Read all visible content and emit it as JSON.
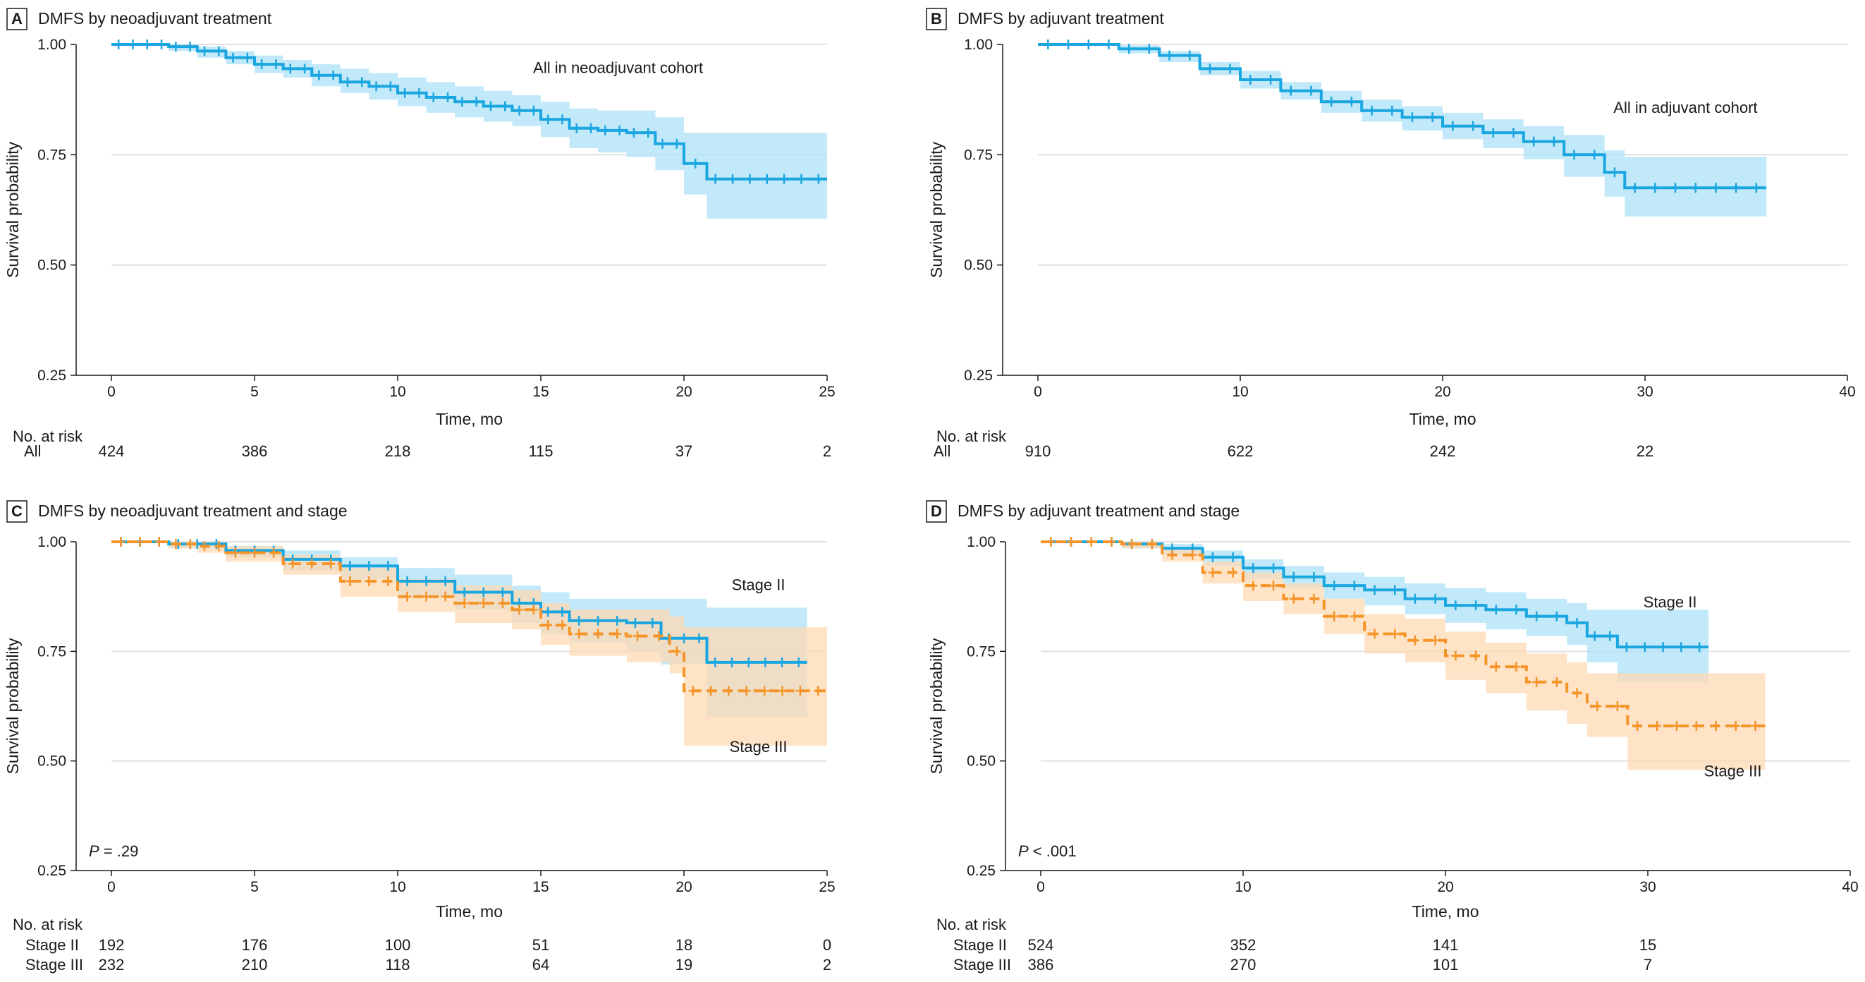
{
  "colors": {
    "blue": "#1aa6e0",
    "blue_band": "#b3e3f7",
    "orange": "#f59428",
    "orange_band": "#fdd9b3"
  },
  "chart_data": [
    {
      "type": "line",
      "panel": "A",
      "title": "DMFS by neoadjuvant treatment",
      "xlabel": "Time, mo",
      "ylabel": "Survival probability",
      "xlim": [
        0,
        25
      ],
      "ylim": [
        0.25,
        1.0
      ],
      "xticks": [
        0,
        5,
        10,
        15,
        20,
        25
      ],
      "xtick_labels": [
        "0",
        "5",
        "10",
        "15",
        "20",
        "25"
      ],
      "yticks": [
        0.25,
        0.5,
        0.75,
        1.0
      ],
      "ytick_labels": [
        "0.25",
        "0.50",
        "0.75",
        "1.00"
      ],
      "p_value": null,
      "series": [
        {
          "name": "All",
          "label": "All in neoadjuvant cohort",
          "style": "solid",
          "color": "blue",
          "x": [
            0,
            1,
            2,
            3,
            4,
            5,
            6,
            7,
            8,
            9,
            10,
            11,
            12,
            13,
            14,
            15,
            16,
            17,
            18,
            19,
            20,
            20.8,
            25
          ],
          "y": [
            1.0,
            1.0,
            0.995,
            0.985,
            0.97,
            0.955,
            0.945,
            0.93,
            0.915,
            0.905,
            0.89,
            0.88,
            0.87,
            0.86,
            0.85,
            0.83,
            0.81,
            0.805,
            0.8,
            0.775,
            0.73,
            0.695,
            0.695
          ],
          "ci_upper": [
            1.0,
            1.0,
            1.0,
            0.995,
            0.985,
            0.975,
            0.965,
            0.955,
            0.945,
            0.935,
            0.925,
            0.915,
            0.905,
            0.895,
            0.885,
            0.87,
            0.855,
            0.85,
            0.85,
            0.835,
            0.8,
            0.8,
            0.8
          ],
          "ci_lower": [
            1.0,
            1.0,
            0.985,
            0.97,
            0.955,
            0.935,
            0.925,
            0.905,
            0.89,
            0.875,
            0.86,
            0.845,
            0.835,
            0.825,
            0.815,
            0.79,
            0.765,
            0.755,
            0.745,
            0.715,
            0.66,
            0.605,
            0.605
          ]
        }
      ],
      "labels": [
        {
          "text": "All in neoadjuvant cohort",
          "x": 17.7,
          "y": 0.935
        }
      ],
      "risk_table": {
        "title": "No. at risk",
        "rows": [
          {
            "label": "All",
            "values": [
              "424",
              "386",
              "218",
              "115",
              "37",
              "2"
            ]
          }
        ]
      }
    },
    {
      "type": "line",
      "panel": "B",
      "title": "DMFS by adjuvant treatment",
      "xlabel": "Time, mo",
      "ylabel": "Survival probability",
      "xlim": [
        0,
        40
      ],
      "ylim": [
        0.25,
        1.0
      ],
      "xticks": [
        0,
        10,
        20,
        30,
        40
      ],
      "xtick_labels": [
        "0",
        "10",
        "20",
        "30",
        "40"
      ],
      "yticks": [
        0.25,
        0.5,
        0.75,
        1.0
      ],
      "ytick_labels": [
        "0.25",
        "0.50",
        "0.75",
        "1.00"
      ],
      "p_value": null,
      "series": [
        {
          "name": "All",
          "label": "All in adjuvant cohort",
          "style": "solid",
          "color": "blue",
          "x": [
            0,
            2,
            4,
            6,
            8,
            10,
            12,
            14,
            16,
            18,
            20,
            22,
            24,
            26,
            28,
            29,
            32,
            36
          ],
          "y": [
            1.0,
            1.0,
            0.99,
            0.975,
            0.945,
            0.92,
            0.895,
            0.87,
            0.85,
            0.835,
            0.815,
            0.8,
            0.78,
            0.75,
            0.71,
            0.675,
            0.675,
            0.675
          ],
          "ci_upper": [
            1.0,
            1.0,
            0.998,
            0.985,
            0.96,
            0.94,
            0.915,
            0.895,
            0.875,
            0.86,
            0.845,
            0.83,
            0.815,
            0.795,
            0.76,
            0.745,
            0.745,
            0.745
          ],
          "ci_lower": [
            1.0,
            1.0,
            0.98,
            0.96,
            0.93,
            0.9,
            0.875,
            0.845,
            0.825,
            0.805,
            0.785,
            0.765,
            0.74,
            0.7,
            0.655,
            0.61,
            0.61,
            0.61
          ]
        }
      ],
      "labels": [
        {
          "text": "All in adjuvant cohort",
          "x": 32.0,
          "y": 0.845
        }
      ],
      "risk_table": {
        "title": "No. at risk",
        "rows": [
          {
            "label": "All",
            "values": [
              "910",
              "622",
              "242",
              "22"
            ]
          }
        ]
      }
    },
    {
      "type": "line",
      "panel": "C",
      "title": "DMFS by neoadjuvant treatment and stage",
      "xlabel": "Time, mo",
      "ylabel": "Survival probability",
      "xlim": [
        0,
        25
      ],
      "ylim": [
        0.25,
        1.0
      ],
      "xticks": [
        0,
        5,
        10,
        15,
        20,
        25
      ],
      "xtick_labels": [
        "0",
        "5",
        "10",
        "15",
        "20",
        "25"
      ],
      "yticks": [
        0.25,
        0.5,
        0.75,
        1.0
      ],
      "ytick_labels": [
        "0.25",
        "0.50",
        "0.75",
        "1.00"
      ],
      "p_value": {
        "prefix": "P",
        "text": " = .29"
      },
      "series": [
        {
          "name": "Stage II",
          "label": "Stage II",
          "style": "solid",
          "color": "blue",
          "x": [
            0,
            2,
            4,
            6,
            8,
            10,
            12,
            14,
            15,
            16,
            18,
            19.2,
            20.8,
            24.3
          ],
          "y": [
            1.0,
            0.995,
            0.98,
            0.96,
            0.945,
            0.91,
            0.885,
            0.86,
            0.84,
            0.82,
            0.815,
            0.78,
            0.725,
            0.725
          ],
          "ci_upper": [
            1.0,
            1.0,
            0.99,
            0.98,
            0.965,
            0.94,
            0.925,
            0.9,
            0.885,
            0.87,
            0.87,
            0.87,
            0.85,
            0.85
          ],
          "ci_lower": [
            1.0,
            0.985,
            0.965,
            0.935,
            0.915,
            0.875,
            0.845,
            0.815,
            0.79,
            0.77,
            0.75,
            0.72,
            0.6,
            0.6
          ]
        },
        {
          "name": "Stage III",
          "label": "Stage III",
          "style": "dashed",
          "color": "orange",
          "x": [
            0,
            2,
            3,
            4,
            6,
            8,
            10,
            12,
            14,
            15,
            16,
            18,
            19.5,
            20,
            25
          ],
          "y": [
            1.0,
            0.995,
            0.99,
            0.975,
            0.95,
            0.91,
            0.875,
            0.86,
            0.845,
            0.81,
            0.79,
            0.785,
            0.75,
            0.66,
            0.66
          ],
          "ci_upper": [
            1.0,
            1.0,
            1.0,
            0.99,
            0.97,
            0.94,
            0.915,
            0.9,
            0.89,
            0.86,
            0.845,
            0.845,
            0.83,
            0.805,
            0.805
          ],
          "ci_lower": [
            1.0,
            0.985,
            0.975,
            0.955,
            0.925,
            0.875,
            0.84,
            0.815,
            0.8,
            0.765,
            0.74,
            0.725,
            0.7,
            0.535,
            0.535
          ]
        }
      ],
      "labels": [
        {
          "text": "Stage II",
          "x": 22.6,
          "y": 0.89
        },
        {
          "text": "Stage III",
          "x": 22.6,
          "y": 0.52
        }
      ],
      "risk_table": {
        "title": "No. at risk",
        "rows": [
          {
            "label": "Stage II",
            "values": [
              "192",
              "176",
              "100",
              "51",
              "18",
              "0"
            ]
          },
          {
            "label": "Stage III",
            "values": [
              "232",
              "210",
              "118",
              "64",
              "19",
              "2"
            ]
          }
        ]
      }
    },
    {
      "type": "line",
      "panel": "D",
      "title": "DMFS by adjuvant treatment and stage",
      "xlabel": "Time, mo",
      "ylabel": "Survival probability",
      "xlim": [
        0,
        40
      ],
      "ylim": [
        0.25,
        1.0
      ],
      "xticks": [
        0,
        10,
        20,
        30,
        40
      ],
      "xtick_labels": [
        "0",
        "10",
        "20",
        "30",
        "40"
      ],
      "yticks": [
        0.25,
        0.5,
        0.75,
        1.0
      ],
      "ytick_labels": [
        "0.25",
        "0.50",
        "0.75",
        "1.00"
      ],
      "p_value": {
        "prefix": "P",
        "text": " < .001"
      },
      "series": [
        {
          "name": "Stage II",
          "label": "Stage II",
          "style": "solid",
          "color": "blue",
          "x": [
            0,
            4,
            6,
            8,
            10,
            12,
            14,
            16,
            18,
            20,
            22,
            24,
            26,
            27,
            28.5,
            33
          ],
          "y": [
            1.0,
            0.995,
            0.985,
            0.965,
            0.94,
            0.92,
            0.9,
            0.89,
            0.87,
            0.855,
            0.845,
            0.83,
            0.815,
            0.785,
            0.76,
            0.76
          ],
          "ci_upper": [
            1.0,
            1.0,
            0.995,
            0.98,
            0.96,
            0.945,
            0.93,
            0.92,
            0.905,
            0.895,
            0.885,
            0.87,
            0.86,
            0.845,
            0.845,
            0.845
          ],
          "ci_lower": [
            1.0,
            0.985,
            0.97,
            0.945,
            0.915,
            0.895,
            0.87,
            0.855,
            0.835,
            0.815,
            0.8,
            0.785,
            0.765,
            0.725,
            0.68,
            0.68
          ]
        },
        {
          "name": "Stage III",
          "label": "Stage III",
          "style": "dashed",
          "color": "orange",
          "x": [
            0,
            4,
            6,
            8,
            10,
            12,
            14,
            16,
            18,
            20,
            22,
            24,
            26,
            27,
            29,
            35.8
          ],
          "y": [
            1.0,
            0.995,
            0.97,
            0.93,
            0.9,
            0.87,
            0.83,
            0.79,
            0.775,
            0.74,
            0.715,
            0.68,
            0.655,
            0.625,
            0.58,
            0.58
          ],
          "ci_upper": [
            1.0,
            1.0,
            0.985,
            0.955,
            0.93,
            0.905,
            0.87,
            0.835,
            0.825,
            0.795,
            0.77,
            0.745,
            0.725,
            0.7,
            0.7,
            0.7
          ],
          "ci_lower": [
            1.0,
            0.985,
            0.955,
            0.905,
            0.865,
            0.835,
            0.79,
            0.745,
            0.725,
            0.685,
            0.655,
            0.615,
            0.585,
            0.555,
            0.48,
            0.48
          ]
        }
      ],
      "labels": [
        {
          "text": "Stage II",
          "x": 31.1,
          "y": 0.85
        },
        {
          "text": "Stage III",
          "x": 34.2,
          "y": 0.465
        }
      ],
      "risk_table": {
        "title": "No. at risk",
        "rows": [
          {
            "label": "Stage II",
            "values": [
              "524",
              "352",
              "141",
              "15"
            ]
          },
          {
            "label": "Stage III",
            "values": [
              "386",
              "270",
              "101",
              "7"
            ]
          }
        ]
      }
    }
  ]
}
